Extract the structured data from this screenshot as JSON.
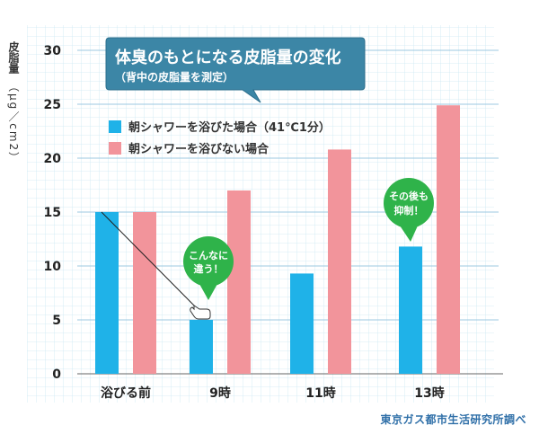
{
  "chart_data": {
    "type": "bar",
    "title": "体臭のもとになる皮脂量の変化",
    "subtitle": "（背中の皮脂量を測定）",
    "ylabel_main": "皮脂量",
    "ylabel_unit": "（μg／cm2）",
    "categories": [
      "浴びる前",
      "9時",
      "11時",
      "13時"
    ],
    "series": [
      {
        "name": "朝シャワーを浴びた場合（41℃1分）",
        "color": "#1fb2e8",
        "values": [
          15,
          5,
          9.3,
          11.8
        ]
      },
      {
        "name": "朝シャワーを浴びない場合",
        "color": "#f2949b",
        "values": [
          15,
          17,
          20.8,
          24.9
        ]
      }
    ],
    "ylim": [
      0,
      30
    ],
    "yticks": [
      0,
      5,
      10,
      15,
      20,
      25,
      30
    ],
    "grid": true,
    "legend_position": "top-left",
    "annotations": [
      {
        "text_lines": [
          "こんなに",
          "違う！"
        ],
        "category": "9時"
      },
      {
        "text_lines": [
          "その後も",
          "抑制！"
        ],
        "category": "13時"
      }
    ],
    "source": "東京ガス都市生活研究所調べ"
  },
  "colors": {
    "bubble": "#2fb34a",
    "title_box": "#3c86a6",
    "grid": "#c6e3f2"
  }
}
